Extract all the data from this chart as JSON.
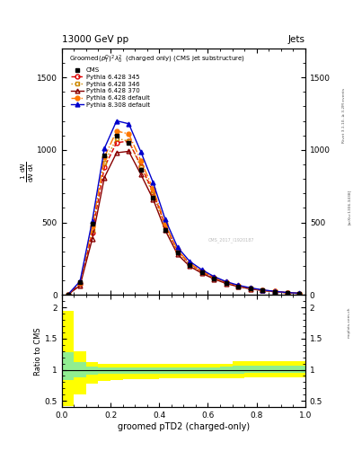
{
  "title_top": "13000 GeV pp",
  "title_right": "Jets",
  "plot_title": "Groomed$(p_T^D)^2\\lambda_0^2$  (charged only) (CMS jet substructure)",
  "xlabel": "groomed pTD2 (charged-only)",
  "rivet_label": "Rivet 3.1.10, ≥ 3.2M events",
  "arxiv_label": "[arXiv:1306.3438]",
  "mcplots_label": "mcplots.cern.ch",
  "watermark": "CMS_2017_I1920187",
  "x_bins": [
    0.0,
    0.05,
    0.1,
    0.15,
    0.2,
    0.25,
    0.3,
    0.35,
    0.4,
    0.45,
    0.5,
    0.55,
    0.6,
    0.65,
    0.7,
    0.75,
    0.8,
    0.85,
    0.9,
    0.95,
    1.0
  ],
  "cms_values": [
    2,
    90,
    490,
    960,
    1100,
    1050,
    860,
    670,
    450,
    290,
    205,
    155,
    115,
    82,
    60,
    44,
    32,
    23,
    16,
    10
  ],
  "series": [
    {
      "label": "Pythia 6.428 345",
      "color": "#dd0000",
      "linestyle": "dashed",
      "marker": "o",
      "markerfacecolor": "none",
      "values": [
        2,
        75,
        430,
        880,
        1050,
        1060,
        890,
        710,
        480,
        305,
        215,
        162,
        118,
        86,
        62,
        45,
        33,
        24,
        16,
        11
      ]
    },
    {
      "label": "Pythia 6.428 346",
      "color": "#cc8800",
      "linestyle": "dotted",
      "marker": "s",
      "markerfacecolor": "none",
      "values": [
        2,
        80,
        450,
        910,
        1080,
        1060,
        880,
        695,
        465,
        295,
        208,
        157,
        115,
        83,
        60,
        44,
        32,
        23,
        15,
        10
      ]
    },
    {
      "label": "Pythia 6.428 370",
      "color": "#880000",
      "linestyle": "solid",
      "marker": "^",
      "markerfacecolor": "none",
      "values": [
        2,
        65,
        385,
        810,
        980,
        990,
        830,
        660,
        445,
        280,
        198,
        150,
        110,
        79,
        57,
        42,
        30,
        22,
        15,
        10
      ]
    },
    {
      "label": "Pythia 6.428 default",
      "color": "#ff7700",
      "linestyle": "dashdot",
      "marker": "o",
      "markerfacecolor": "#ff7700",
      "values": [
        2,
        85,
        470,
        950,
        1130,
        1110,
        925,
        730,
        490,
        310,
        218,
        164,
        120,
        87,
        63,
        46,
        33,
        24,
        16,
        11
      ]
    },
    {
      "label": "Pythia 8.308 default",
      "color": "#0000cc",
      "linestyle": "solid",
      "marker": "^",
      "markerfacecolor": "#0000cc",
      "values": [
        2,
        95,
        510,
        1010,
        1200,
        1180,
        985,
        775,
        520,
        330,
        232,
        174,
        127,
        92,
        67,
        49,
        35,
        25,
        17,
        12
      ]
    }
  ],
  "ylim_main": [
    0,
    1700
  ],
  "yticks_main": [
    0,
    500,
    1000,
    1500
  ],
  "ylim_ratio": [
    0.4,
    2.2
  ],
  "ratio_yticks": [
    0.5,
    1.0,
    1.5,
    2.0
  ],
  "ratio_yticklabels": [
    "0.5",
    "1",
    "1.5",
    "2"
  ],
  "green_band_lo": [
    0.83,
    0.88,
    0.92,
    0.93,
    0.94,
    0.94,
    0.94,
    0.94,
    0.94,
    0.94,
    0.94,
    0.94,
    0.94,
    0.94,
    0.94,
    0.95,
    0.95,
    0.95,
    0.95,
    0.95
  ],
  "green_band_hi": [
    1.28,
    1.12,
    1.05,
    1.04,
    1.04,
    1.04,
    1.04,
    1.04,
    1.04,
    1.04,
    1.04,
    1.04,
    1.04,
    1.05,
    1.07,
    1.07,
    1.07,
    1.07,
    1.07,
    1.07
  ],
  "yellow_band_lo": [
    0.42,
    0.6,
    0.78,
    0.82,
    0.84,
    0.85,
    0.85,
    0.85,
    0.86,
    0.86,
    0.86,
    0.86,
    0.86,
    0.86,
    0.86,
    0.88,
    0.88,
    0.88,
    0.88,
    0.88
  ],
  "yellow_band_hi": [
    1.95,
    1.3,
    1.12,
    1.1,
    1.09,
    1.09,
    1.09,
    1.09,
    1.09,
    1.09,
    1.09,
    1.09,
    1.09,
    1.1,
    1.14,
    1.14,
    1.14,
    1.14,
    1.14,
    1.14
  ]
}
